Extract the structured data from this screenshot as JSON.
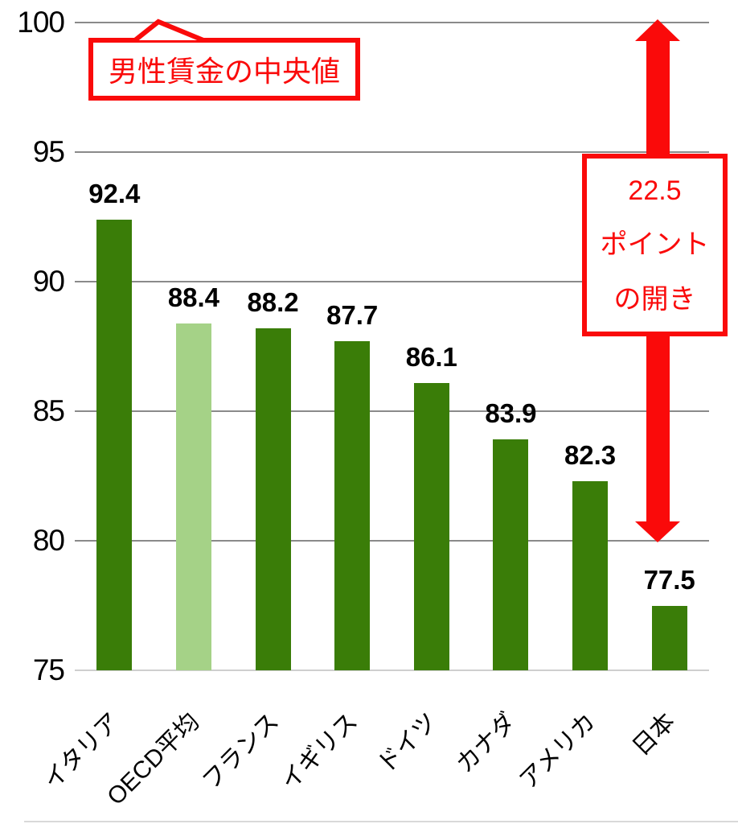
{
  "chart_data": {
    "type": "bar",
    "title": "",
    "categories": [
      "イタリア",
      "OECD平均",
      "フランス",
      "イギリス",
      "ドイツ",
      "カナダ",
      "アメリカ",
      "日本"
    ],
    "values": [
      92.4,
      88.4,
      88.2,
      87.7,
      86.1,
      83.9,
      82.3,
      77.5
    ],
    "value_labels": [
      "92.4",
      "88.4",
      "88.2",
      "87.7",
      "86.1",
      "83.9",
      "82.3",
      "77.5"
    ],
    "highlight_index": 1,
    "bar_color": "#3A7D08",
    "highlight_color": "#A5D287",
    "xlabel": "",
    "ylabel": "",
    "ylim": [
      75,
      100
    ],
    "yticks": [
      75,
      80,
      85,
      90,
      95,
      100
    ],
    "grid": true,
    "legend": null
  },
  "annotations": {
    "callout_label": "男性賃金の中央値",
    "gap_lines": [
      "22.5",
      "ポイント",
      "の開き"
    ],
    "accent_color": "#FA0A0A",
    "arrow_span": {
      "from_value": 100,
      "to_value": 80
    }
  }
}
